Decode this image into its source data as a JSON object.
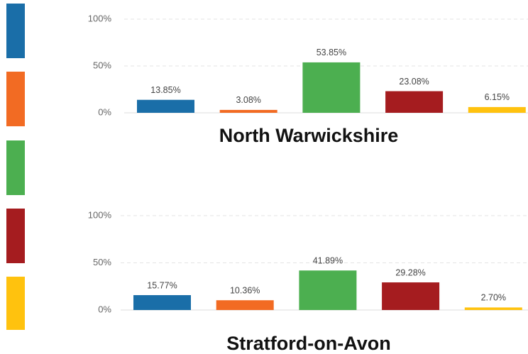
{
  "chart_data": [
    {
      "type": "bar",
      "title": "North Warwickshire",
      "categories": [
        null,
        null,
        null,
        null,
        null
      ],
      "values": [
        13.85,
        3.08,
        53.85,
        23.08,
        6.15
      ],
      "value_labels": [
        "13.85%",
        "3.08%",
        "53.85%",
        "23.08%",
        "6.15%"
      ],
      "colors": [
        "#1a6ea8",
        "#f26b23",
        "#4caf50",
        "#a51c1f",
        "#ffc20e"
      ],
      "ylim": [
        0,
        100
      ],
      "yticks": [
        {
          "value": 0,
          "label": "0%"
        },
        {
          "value": 50,
          "label": "50%"
        },
        {
          "value": 100,
          "label": "100%"
        }
      ],
      "grid": true
    },
    {
      "type": "bar",
      "title": "Stratford-on-Avon",
      "categories": [
        null,
        null,
        null,
        null,
        null
      ],
      "values": [
        15.77,
        10.36,
        41.89,
        29.28,
        2.7
      ],
      "value_labels": [
        "15.77%",
        "10.36%",
        "41.89%",
        "29.28%",
        "2.70%"
      ],
      "colors": [
        "#1a6ea8",
        "#f26b23",
        "#4caf50",
        "#a51c1f",
        "#ffc20e"
      ],
      "ylim": [
        0,
        100
      ],
      "yticks": [
        {
          "value": 0,
          "label": "0%"
        },
        {
          "value": 50,
          "label": "50%"
        },
        {
          "value": 100,
          "label": "100%"
        }
      ],
      "grid": true
    }
  ]
}
